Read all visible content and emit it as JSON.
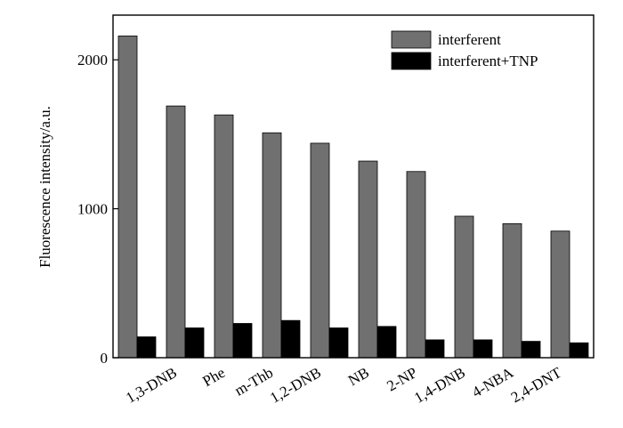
{
  "chart_data": {
    "type": "bar",
    "ylabel": "Fluorescence intensity/a.u.",
    "categories": [
      null,
      "1,3-DNB",
      "Phe",
      "m-Thb",
      "1,2-DNB",
      "NB",
      "2-NP",
      "1,4-DNB",
      "4-NBA",
      "2,4-DNT"
    ],
    "series": [
      {
        "name": "interferent",
        "color": "#707070",
        "values": [
          2160,
          1690,
          1630,
          1510,
          1440,
          1320,
          1250,
          950,
          900,
          850
        ]
      },
      {
        "name": "interferent+TNP",
        "color": "#000000",
        "values": [
          140,
          200,
          230,
          250,
          200,
          210,
          120,
          120,
          110,
          100
        ]
      }
    ],
    "ylim": [
      0,
      2300
    ],
    "yticks": [
      0,
      1000,
      2000
    ],
    "legend": "upper right"
  }
}
